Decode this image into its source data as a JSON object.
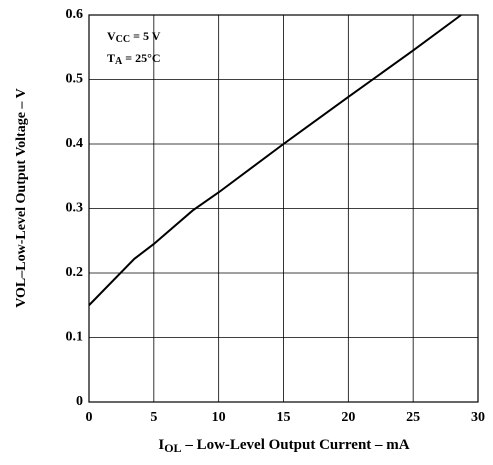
{
  "chart_data": {
    "type": "line",
    "x_label": {
      "symbol": "I",
      "subscript": "OL",
      "text": " – Low-Level Output Current – mA"
    },
    "y_label": "VOL–Low-Level Output Voltage – V",
    "annotations": [
      {
        "symbol": "V",
        "subscript": "CC",
        "text": " = 5 V"
      },
      {
        "symbol": "T",
        "subscript": "A",
        "text": " = 25°C"
      }
    ],
    "series": [
      {
        "color": "#000000",
        "x": [
          0,
          3.5,
          5,
          8,
          10,
          15,
          20,
          25,
          28.7
        ],
        "values": [
          0.15,
          0.222,
          0.245,
          0.297,
          0.325,
          0.4,
          0.473,
          0.545,
          0.6
        ]
      }
    ],
    "xlim": [
      0,
      30
    ],
    "xticks": [
      0,
      5,
      10,
      15,
      20,
      25,
      30
    ],
    "ylim": [
      0,
      0.6
    ],
    "yticks": [
      0,
      0.1,
      0.2,
      0.3,
      0.4,
      0.5,
      0.6
    ],
    "grid": true
  }
}
